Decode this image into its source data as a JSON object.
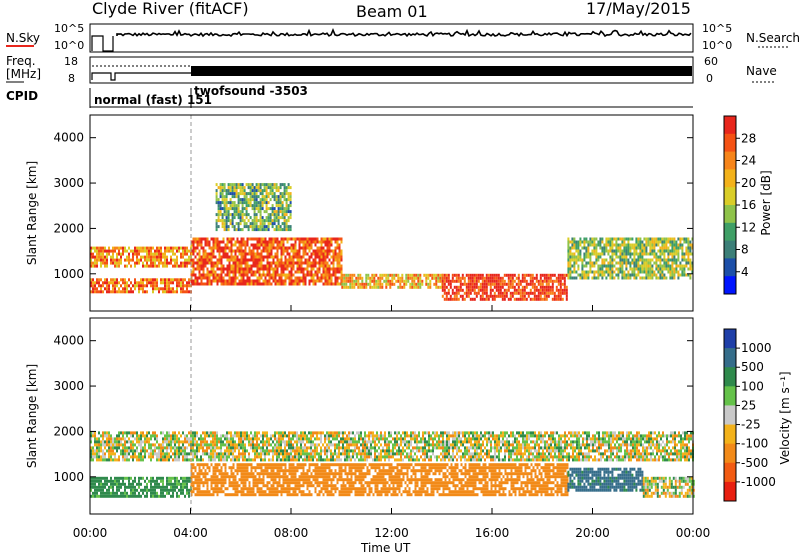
{
  "header": {
    "station": "Clyde River (fitACF)",
    "beam": "Beam 01",
    "date": "17/May/2015"
  },
  "noise_panel": {
    "left_label": "N.Sky",
    "left_ticks": [
      "10^5",
      "10^0"
    ],
    "right_label": "N.Search",
    "right_ticks": [
      "10^5",
      "10^0"
    ]
  },
  "freq_panel": {
    "left_label_line1": "Freq.",
    "left_label_line2": "[MHz]",
    "left_ticks": [
      "18",
      "8"
    ],
    "right_label": "Nave",
    "right_ticks": [
      "60",
      "0"
    ]
  },
  "cpid_panel": {
    "label": "CPID",
    "mode1": "normal (fast) 151",
    "mode2": "twofsound -3503"
  },
  "power_panel": {
    "ylabel": "Slant Range [km]",
    "cbar_label": "Power [dB]",
    "cbar_ticks": [
      "28",
      "24",
      "20",
      "16",
      "12",
      "8",
      "4"
    ],
    "cbar_colors": [
      "#e8261c",
      "#f55214",
      "#f7851a",
      "#f3b21a",
      "#d9cd28",
      "#8fc34a",
      "#3f9f66",
      "#3c7f78",
      "#1c4fa8",
      "#0015ff"
    ]
  },
  "velocity_panel": {
    "ylabel": "Slant Range [km]",
    "cbar_label": "Velocity [m s⁻¹]",
    "cbar_ticks": [
      "1000",
      "500",
      "100",
      "25",
      "-25",
      "-100",
      "-500",
      "-1000"
    ],
    "cbar_colors": [
      "#1f3fa8",
      "#356d8a",
      "#2f8a4c",
      "#65c24a",
      "#c9c9c9",
      "#f3b21a",
      "#f28a18",
      "#f25b12",
      "#e81f10"
    ]
  },
  "x_axis": {
    "label": "Time UT",
    "ticks": [
      "00:00",
      "04:00",
      "08:00",
      "12:00",
      "16:00",
      "20:00",
      "00:00"
    ]
  },
  "chart_data": [
    {
      "type": "heatmap",
      "title": "Power",
      "xlabel": "Time UT",
      "ylabel": "Slant Range [km]",
      "x_range_hours": [
        0,
        24
      ],
      "ylim": [
        180,
        4500
      ],
      "y_ticks": [
        1000,
        2000,
        3000,
        4000
      ],
      "colorbar": {
        "label": "Power [dB]",
        "range": [
          0,
          30
        ],
        "ticks": [
          4,
          8,
          12,
          16,
          20,
          24,
          28
        ]
      },
      "regions": [
        {
          "t": [
            0,
            4
          ],
          "r": [
            600,
            900
          ],
          "value": 24
        },
        {
          "t": [
            0,
            4
          ],
          "r": [
            1200,
            1600
          ],
          "value": 22
        },
        {
          "t": [
            4,
            10
          ],
          "r": [
            800,
            1800
          ],
          "value": 26
        },
        {
          "t": [
            5,
            8
          ],
          "r": [
            2000,
            3000
          ],
          "value": 12
        },
        {
          "t": [
            10,
            14
          ],
          "r": [
            700,
            1000
          ],
          "value": 20
        },
        {
          "t": [
            14,
            19
          ],
          "r": [
            450,
            1000
          ],
          "value": 28
        },
        {
          "t": [
            19,
            24
          ],
          "r": [
            900,
            1800
          ],
          "value": 14
        }
      ]
    },
    {
      "type": "heatmap",
      "title": "Velocity",
      "xlabel": "Time UT",
      "ylabel": "Slant Range [km]",
      "x_range_hours": [
        0,
        24
      ],
      "ylim": [
        180,
        4500
      ],
      "y_ticks": [
        1000,
        2000,
        3000,
        4000
      ],
      "colorbar": {
        "label": "Velocity [m s⁻¹]",
        "range": [
          -1000,
          1000
        ],
        "ticks": [
          1000,
          500,
          100,
          25,
          -25,
          -100,
          -500,
          -1000
        ]
      },
      "regions": [
        {
          "t": [
            0,
            4
          ],
          "r": [
            600,
            1000
          ],
          "value": 200
        },
        {
          "t": [
            0,
            24
          ],
          "r": [
            1400,
            2000
          ],
          "value": 0
        },
        {
          "t": [
            4,
            19
          ],
          "r": [
            600,
            1300
          ],
          "value": -300
        },
        {
          "t": [
            19,
            22
          ],
          "r": [
            700,
            1200
          ],
          "value": 600
        },
        {
          "t": [
            22,
            24
          ],
          "r": [
            600,
            1000
          ],
          "value": 0
        }
      ]
    }
  ]
}
